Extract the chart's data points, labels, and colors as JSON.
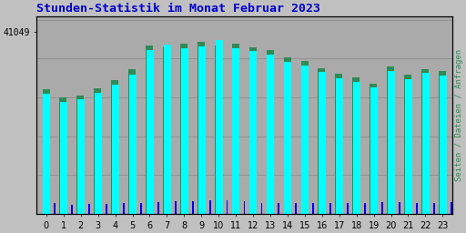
{
  "title": "Stunden-Statistik im Monat Februar 2023",
  "ylabel_right": "Seiten / Dateien / Anfragen",
  "ytick_label": "41049",
  "hours": [
    0,
    1,
    2,
    3,
    4,
    5,
    6,
    7,
    8,
    9,
    10,
    11,
    12,
    13,
    14,
    15,
    16,
    17,
    18,
    19,
    20,
    21,
    22,
    23
  ],
  "seiten": [
    0.62,
    0.575,
    0.59,
    0.625,
    0.665,
    0.72,
    0.845,
    0.875,
    0.855,
    0.865,
    0.895,
    0.855,
    0.838,
    0.82,
    0.785,
    0.765,
    0.73,
    0.7,
    0.68,
    0.65,
    0.735,
    0.695,
    0.725,
    0.715
  ],
  "dateien": [
    0.645,
    0.6,
    0.612,
    0.648,
    0.69,
    0.745,
    0.87,
    0.86,
    0.878,
    0.888,
    0.87,
    0.878,
    0.86,
    0.843,
    0.808,
    0.788,
    0.753,
    0.723,
    0.703,
    0.673,
    0.758,
    0.718,
    0.748,
    0.738
  ],
  "anfragen": [
    0.055,
    0.048,
    0.052,
    0.05,
    0.055,
    0.058,
    0.062,
    0.065,
    0.065,
    0.072,
    0.072,
    0.065,
    0.058,
    0.058,
    0.058,
    0.055,
    0.055,
    0.055,
    0.055,
    0.062,
    0.062,
    0.055,
    0.055,
    0.062
  ],
  "color_seiten": "#00FFFF",
  "color_dateien": "#2E8B57",
  "color_anfragen": "#0000EE",
  "bg_color": "#C0C0C0",
  "plot_bg_color": "#AAAAAA",
  "title_color": "#0000CC",
  "ylabel_color": "#2E8B57",
  "border_color": "#000000",
  "ylim_max": 1.02,
  "title_fontsize": 9.5,
  "tick_fontsize": 7
}
